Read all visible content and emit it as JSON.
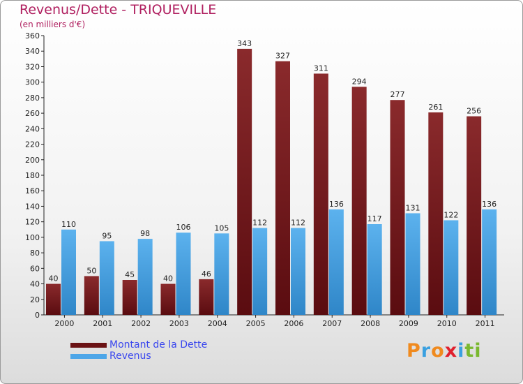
{
  "chart_data": {
    "type": "bar",
    "title": "Revenus/Dette - TRIQUEVILLE",
    "subtitle": "(en milliers d'€)",
    "categories": [
      "2000",
      "2001",
      "2002",
      "2003",
      "2004",
      "2005",
      "2006",
      "2007",
      "2008",
      "2009",
      "2010",
      "2011"
    ],
    "series": [
      {
        "name": "Montant de la Dette",
        "color": "#7a1a1c",
        "values": [
          40,
          50,
          45,
          40,
          46,
          343,
          327,
          311,
          294,
          277,
          261,
          256
        ]
      },
      {
        "name": "Revenus",
        "color": "#4da6e8",
        "values": [
          110,
          95,
          98,
          106,
          105,
          112,
          112,
          136,
          117,
          131,
          122,
          136
        ]
      }
    ],
    "ylim": [
      0,
      360
    ],
    "ytick_step": 20,
    "grid": false,
    "legend": "bottom-left"
  },
  "logo": {
    "letters": [
      {
        "char": "P",
        "color": "#f08a1e"
      },
      {
        "char": "r",
        "color": "#3aa0e0"
      },
      {
        "char": "o",
        "color": "#f08a1e"
      },
      {
        "char": "x",
        "color": "#e0202e"
      },
      {
        "char": "i",
        "color": "#3aa0e0"
      },
      {
        "char": "t",
        "color": "#7ab830"
      },
      {
        "char": "i",
        "color": "#7ab830"
      }
    ]
  }
}
